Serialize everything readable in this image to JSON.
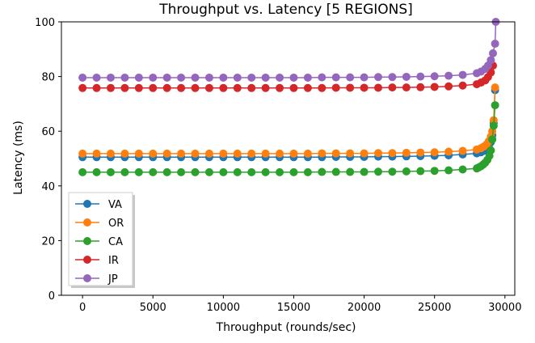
{
  "chart_data": {
    "type": "line",
    "title": "Throughput vs. Latency [5 REGIONS]",
    "xlabel": "Throughput (rounds/sec)",
    "ylabel": "Latency (ms)",
    "xlim": [
      -1500,
      30700
    ],
    "ylim": [
      0,
      100
    ],
    "xticks": [
      0,
      5000,
      10000,
      15000,
      20000,
      25000,
      30000
    ],
    "yticks": [
      0,
      20,
      40,
      60,
      80,
      100
    ],
    "grid": false,
    "legend_position": "lower-left",
    "series": [
      {
        "name": "VA",
        "color": "#1f77b4",
        "x": [
          0,
          1000,
          2000,
          3000,
          4000,
          5000,
          6000,
          7000,
          8000,
          9000,
          10000,
          11000,
          12000,
          13000,
          14000,
          15000,
          16000,
          17000,
          18000,
          19000,
          20000,
          21000,
          22000,
          23000,
          24000,
          25000,
          26000,
          27000,
          28000,
          28300,
          28500,
          28700,
          28850,
          29000,
          29100,
          29200,
          29300
        ],
        "y": [
          50.5,
          50.5,
          50.5,
          50.5,
          50.5,
          50.5,
          50.5,
          50.5,
          50.5,
          50.5,
          50.5,
          50.5,
          50.5,
          50.5,
          50.5,
          50.5,
          50.5,
          50.5,
          50.6,
          50.6,
          50.6,
          50.7,
          50.7,
          50.8,
          50.9,
          51.0,
          51.2,
          51.5,
          51.9,
          52.3,
          52.8,
          53.5,
          54.5,
          56.0,
          58.5,
          63.0,
          75.0
        ]
      },
      {
        "name": "OR",
        "color": "#ff7f0e",
        "x": [
          0,
          1000,
          2000,
          3000,
          4000,
          5000,
          6000,
          7000,
          8000,
          9000,
          10000,
          11000,
          12000,
          13000,
          14000,
          15000,
          16000,
          17000,
          18000,
          19000,
          20000,
          21000,
          22000,
          23000,
          24000,
          25000,
          26000,
          27000,
          28000,
          28300,
          28500,
          28700,
          28850,
          29000,
          29100,
          29200,
          29300
        ],
        "y": [
          51.8,
          51.8,
          51.8,
          51.8,
          51.8,
          51.8,
          51.8,
          51.8,
          51.8,
          51.8,
          51.8,
          51.8,
          51.8,
          51.8,
          51.8,
          51.8,
          51.8,
          51.9,
          51.9,
          51.9,
          51.9,
          52.0,
          52.0,
          52.1,
          52.2,
          52.3,
          52.5,
          52.8,
          53.3,
          53.8,
          54.4,
          55.2,
          56.3,
          58.0,
          60.0,
          64.0,
          76.0
        ]
      },
      {
        "name": "CA",
        "color": "#2ca02c",
        "x": [
          0,
          1000,
          2000,
          3000,
          4000,
          5000,
          6000,
          7000,
          8000,
          9000,
          10000,
          11000,
          12000,
          13000,
          14000,
          15000,
          16000,
          17000,
          18000,
          19000,
          20000,
          21000,
          22000,
          23000,
          24000,
          25000,
          26000,
          27000,
          28000,
          28150,
          28300,
          28450,
          28600,
          28750,
          28900,
          29000,
          29100,
          29200,
          29300
        ],
        "y": [
          45.0,
          45.0,
          45.0,
          45.0,
          45.0,
          45.0,
          45.0,
          45.0,
          45.0,
          45.0,
          45.0,
          45.0,
          45.0,
          45.0,
          45.0,
          45.0,
          45.0,
          45.1,
          45.1,
          45.1,
          45.1,
          45.2,
          45.2,
          45.3,
          45.4,
          45.5,
          45.7,
          46.0,
          46.4,
          46.8,
          47.2,
          47.8,
          48.5,
          49.5,
          51.0,
          53.0,
          57.0,
          62.0,
          69.5
        ]
      },
      {
        "name": "IR",
        "color": "#d62728",
        "x": [
          0,
          1000,
          2000,
          3000,
          4000,
          5000,
          6000,
          7000,
          8000,
          9000,
          10000,
          11000,
          12000,
          13000,
          14000,
          15000,
          16000,
          17000,
          18000,
          19000,
          20000,
          21000,
          22000,
          23000,
          24000,
          25000,
          26000,
          27000,
          28000,
          28300,
          28600,
          28800,
          29000,
          29150
        ],
        "y": [
          75.8,
          75.8,
          75.8,
          75.8,
          75.8,
          75.8,
          75.8,
          75.8,
          75.8,
          75.8,
          75.8,
          75.8,
          75.8,
          75.8,
          75.8,
          75.8,
          75.8,
          75.8,
          75.9,
          75.9,
          75.9,
          75.9,
          76.0,
          76.0,
          76.1,
          76.2,
          76.4,
          76.7,
          77.2,
          77.8,
          78.6,
          79.8,
          81.5,
          84.0
        ]
      },
      {
        "name": "JP",
        "color": "#9467bd",
        "x": [
          0,
          1000,
          2000,
          3000,
          4000,
          5000,
          6000,
          7000,
          8000,
          9000,
          10000,
          11000,
          12000,
          13000,
          14000,
          15000,
          16000,
          17000,
          18000,
          19000,
          20000,
          21000,
          22000,
          23000,
          24000,
          25000,
          26000,
          27000,
          28000,
          28300,
          28600,
          28800,
          29000,
          29150,
          29300,
          29350
        ],
        "y": [
          79.6,
          79.6,
          79.6,
          79.6,
          79.6,
          79.6,
          79.6,
          79.6,
          79.6,
          79.6,
          79.6,
          79.6,
          79.6,
          79.6,
          79.6,
          79.6,
          79.6,
          79.7,
          79.7,
          79.7,
          79.7,
          79.8,
          79.8,
          79.9,
          80.0,
          80.1,
          80.3,
          80.6,
          81.2,
          81.8,
          82.8,
          84.0,
          86.0,
          88.5,
          92.0,
          100.0
        ]
      }
    ]
  }
}
